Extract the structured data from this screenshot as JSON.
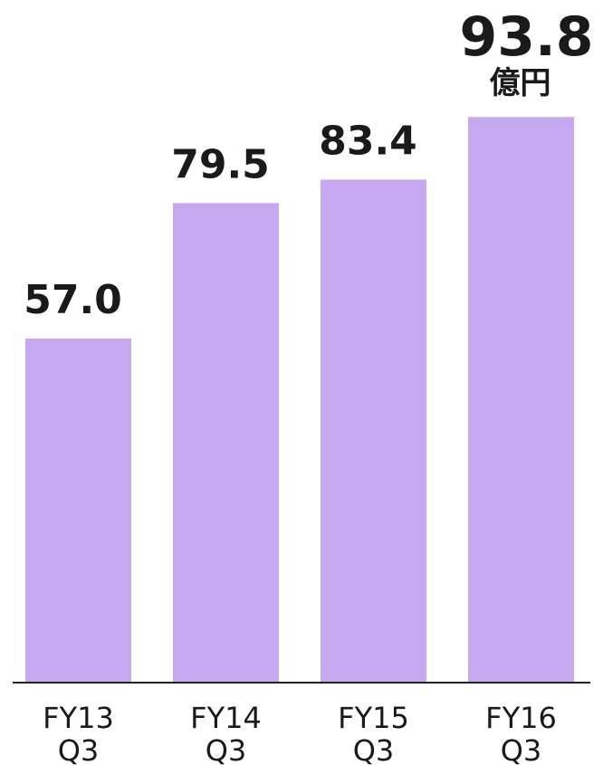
{
  "chart_data": {
    "type": "bar",
    "categories": [
      [
        "FY13",
        "Q3"
      ],
      [
        "FY14",
        "Q3"
      ],
      [
        "FY15",
        "Q3"
      ],
      [
        "FY16",
        "Q3"
      ]
    ],
    "values": [
      57.0,
      79.5,
      83.4,
      93.8
    ],
    "value_labels": [
      "57.0",
      "79.5",
      "83.4",
      "93.8"
    ],
    "unit": "億円",
    "title": "",
    "xlabel": "",
    "ylabel": "",
    "ylim": [
      0,
      100
    ],
    "grid": false,
    "bar_color": "#c5a8f0",
    "text_color": "#1a1a1a"
  }
}
